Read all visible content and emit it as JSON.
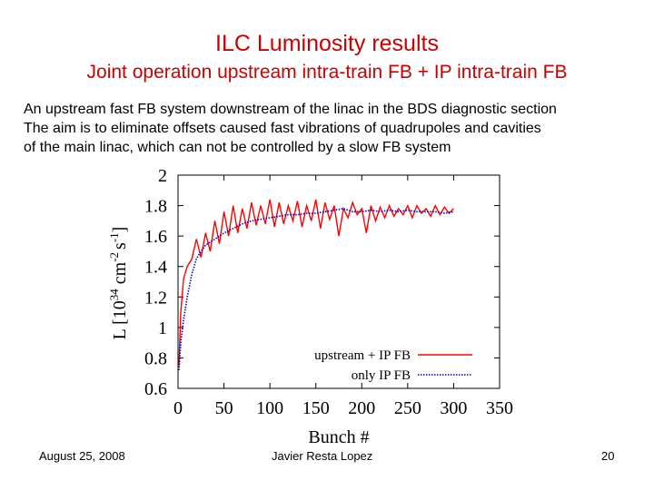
{
  "slide": {
    "title": "ILC Luminosity results",
    "subtitle": "Joint operation upstream intra-train FB + IP intra-train FB",
    "body_lines": [
      "An upstream fast FB system downstream of the linac in the BDS diagnostic section",
      "The aim is to eliminate offsets caused fast vibrations of quadrupoles and cavities",
      "of the main linac, which can not be controlled by a slow FB system"
    ],
    "footer": {
      "date": "August 25, 2008",
      "author": "Javier Resta Lopez",
      "page": "20"
    }
  },
  "colors": {
    "title": "#cc0000",
    "series_upstream": "#ff0000",
    "series_ip": "#0000cc"
  },
  "chart_data": {
    "type": "line",
    "xlabel": "Bunch #",
    "ylabel_parts": {
      "base": "L [10",
      "exp1": "34",
      "mid": " cm",
      "exp2": "-2",
      "sep": "s",
      "exp3": "-1",
      "end": "]"
    },
    "xlim": [
      0,
      350
    ],
    "ylim": [
      0.6,
      2
    ],
    "xticks": [
      0,
      50,
      100,
      150,
      200,
      250,
      300,
      350
    ],
    "yticks": [
      0.6,
      0.8,
      1,
      1.2,
      1.4,
      1.6,
      1.8,
      2
    ],
    "ytick_labels": [
      "0.6",
      "0.8",
      "1",
      "1.2",
      "1.4",
      "1.6",
      "1.8",
      "2"
    ],
    "legend_position": "bottom-right",
    "series": [
      {
        "name": "upstream + IP FB",
        "style": "solid",
        "x": [
          1,
          3,
          6,
          10,
          15,
          20,
          25,
          30,
          35,
          40,
          45,
          50,
          55,
          60,
          65,
          70,
          75,
          80,
          85,
          90,
          95,
          100,
          105,
          110,
          115,
          120,
          125,
          130,
          135,
          140,
          145,
          150,
          155,
          160,
          165,
          170,
          175,
          180,
          185,
          190,
          195,
          200,
          205,
          210,
          215,
          220,
          225,
          230,
          235,
          240,
          245,
          250,
          255,
          260,
          265,
          270,
          275,
          280,
          285,
          290,
          295,
          300
        ],
        "y": [
          0.75,
          1.1,
          1.32,
          1.4,
          1.45,
          1.58,
          1.46,
          1.62,
          1.5,
          1.7,
          1.55,
          1.76,
          1.6,
          1.8,
          1.62,
          1.78,
          1.65,
          1.82,
          1.67,
          1.8,
          1.68,
          1.84,
          1.66,
          1.82,
          1.68,
          1.8,
          1.7,
          1.83,
          1.66,
          1.8,
          1.7,
          1.84,
          1.65,
          1.82,
          1.71,
          1.8,
          1.6,
          1.78,
          1.72,
          1.82,
          1.74,
          1.78,
          1.62,
          1.8,
          1.7,
          1.79,
          1.72,
          1.8,
          1.73,
          1.78,
          1.74,
          1.8,
          1.72,
          1.8,
          1.75,
          1.78,
          1.73,
          1.8,
          1.74,
          1.79,
          1.75,
          1.78
        ]
      },
      {
        "name": "only IP FB",
        "style": "dotted",
        "x": [
          1,
          3,
          6,
          10,
          15,
          20,
          25,
          30,
          40,
          50,
          60,
          70,
          80,
          90,
          100,
          110,
          120,
          130,
          140,
          150,
          160,
          170,
          180,
          190,
          200,
          210,
          220,
          230,
          240,
          250,
          260,
          270,
          280,
          290,
          300
        ],
        "y": [
          0.72,
          0.9,
          1.05,
          1.2,
          1.35,
          1.45,
          1.5,
          1.54,
          1.58,
          1.62,
          1.65,
          1.68,
          1.7,
          1.71,
          1.72,
          1.73,
          1.74,
          1.74,
          1.75,
          1.75,
          1.76,
          1.77,
          1.78,
          1.76,
          1.76,
          1.77,
          1.76,
          1.77,
          1.76,
          1.77,
          1.76,
          1.76,
          1.76,
          1.75,
          1.76
        ]
      }
    ]
  }
}
